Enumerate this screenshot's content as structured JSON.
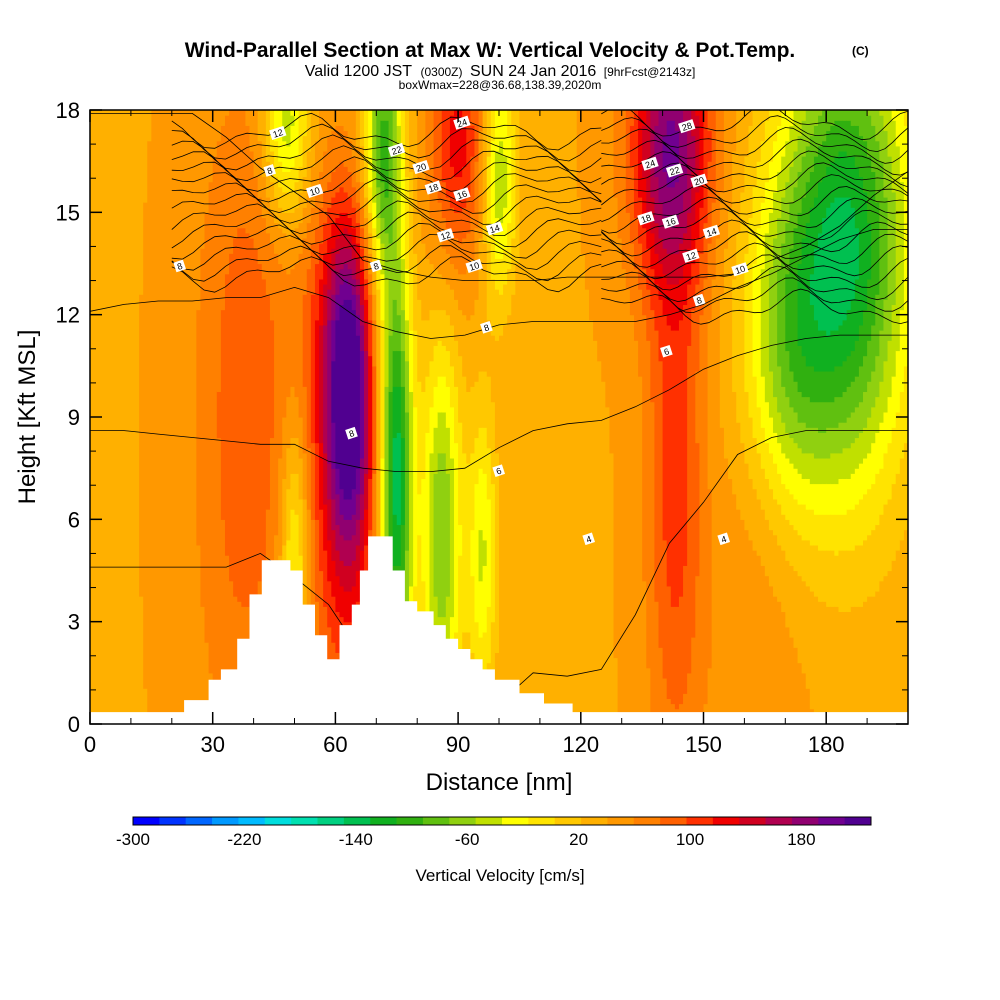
{
  "chart_data": {
    "type": "heatmap",
    "title": "Wind-Parallel Section at Max W: Vertical Velocity & Pot.Temp.",
    "title_mark": "(C)",
    "subtitle": {
      "part1": "Valid 1200 JST",
      "utc": "(0300Z)",
      "part2": "SUN 24 Jan 2016",
      "fcst": "[9hrFcst@2143z]"
    },
    "subtitle2": "boxWmax=228@36.68,138.39,2020m",
    "xlabel": "Distance [nm]",
    "ylabel": "Height [Kft MSL]",
    "xlim": [
      0,
      200
    ],
    "ylim": [
      0,
      18
    ],
    "x_ticks": [
      0,
      30,
      60,
      90,
      120,
      150,
      180
    ],
    "y_ticks": [
      0,
      3,
      6,
      9,
      12,
      15,
      18
    ],
    "colorbar": {
      "label": "Vertical Velocity [cm/s]",
      "range": [
        -300,
        230
      ],
      "tick_labels": [
        -300,
        -220,
        -140,
        -60,
        20,
        100,
        180
      ],
      "colors": [
        "#0000ff",
        "#0033ff",
        "#0066ff",
        "#0099ff",
        "#00bbff",
        "#00dddd",
        "#00e0b0",
        "#00d080",
        "#00c050",
        "#10b020",
        "#30b010",
        "#60c010",
        "#90d010",
        "#c0e000",
        "#ffff00",
        "#ffe400",
        "#ffc800",
        "#ffb000",
        "#ff9800",
        "#ff8000",
        "#ff6000",
        "#ff3000",
        "#f00000",
        "#d00020",
        "#b00050",
        "#900070",
        "#700090",
        "#500090"
      ]
    },
    "terrain_kft": [
      [
        0,
        0.35
      ],
      [
        23,
        0.35
      ],
      [
        23,
        0.7
      ],
      [
        29,
        0.7
      ],
      [
        29,
        1.3
      ],
      [
        32,
        1.3
      ],
      [
        32,
        1.6
      ],
      [
        36,
        1.6
      ],
      [
        36,
        2.5
      ],
      [
        39,
        2.5
      ],
      [
        39,
        3.8
      ],
      [
        42,
        3.8
      ],
      [
        42,
        4.8
      ],
      [
        49,
        4.8
      ],
      [
        49,
        4.5
      ],
      [
        52,
        4.5
      ],
      [
        52,
        3.5
      ],
      [
        55,
        3.5
      ],
      [
        55,
        2.6
      ],
      [
        58,
        2.6
      ],
      [
        58,
        1.9
      ],
      [
        61,
        1.9
      ],
      [
        61,
        2.9
      ],
      [
        64,
        2.9
      ],
      [
        64,
        3.5
      ],
      [
        66,
        3.5
      ],
      [
        66,
        4.5
      ],
      [
        68,
        4.5
      ],
      [
        68,
        5.5
      ],
      [
        74,
        5.5
      ],
      [
        74,
        4.5
      ],
      [
        77,
        4.5
      ],
      [
        77,
        3.6
      ],
      [
        80,
        3.6
      ],
      [
        80,
        3.3
      ],
      [
        84,
        3.3
      ],
      [
        84,
        2.9
      ],
      [
        87,
        2.9
      ],
      [
        87,
        2.5
      ],
      [
        90,
        2.5
      ],
      [
        90,
        2.2
      ],
      [
        93,
        2.2
      ],
      [
        93,
        1.9
      ],
      [
        96,
        1.9
      ],
      [
        96,
        1.6
      ],
      [
        99,
        1.6
      ],
      [
        99,
        1.3
      ],
      [
        105,
        1.3
      ],
      [
        105,
        0.9
      ],
      [
        111,
        0.9
      ],
      [
        111,
        0.6
      ],
      [
        118,
        0.6
      ],
      [
        118,
        0.35
      ],
      [
        200,
        0.35
      ]
    ],
    "wind_cells": [
      {
        "x": 64,
        "y": 10,
        "sx": 4.5,
        "sy": 3.5,
        "w": 230
      },
      {
        "x": 63,
        "y": 6,
        "sx": 7,
        "sy": 5,
        "w": 110
      },
      {
        "x": 58,
        "y": 12,
        "sx": 5,
        "sy": 3,
        "w": 70
      },
      {
        "x": 38,
        "y": 8,
        "sx": 9,
        "sy": 7,
        "w": 90
      },
      {
        "x": 40,
        "y": 14,
        "sx": 8,
        "sy": 4,
        "w": 50
      },
      {
        "x": 70,
        "y": 12,
        "sx": 4,
        "sy": 6,
        "w": -20
      },
      {
        "x": 75,
        "y": 7,
        "sx": 2.8,
        "sy": 4.5,
        "w": -150
      },
      {
        "x": 86,
        "y": 5.5,
        "sx": 3.5,
        "sy": 4,
        "w": -80
      },
      {
        "x": 96,
        "y": 5,
        "sx": 2.5,
        "sy": 3,
        "w": -40
      },
      {
        "x": 50,
        "y": 4.5,
        "sx": 2.5,
        "sy": 3,
        "w": -50
      },
      {
        "x": 142,
        "y": 17,
        "sx": 7,
        "sy": 3,
        "w": 190
      },
      {
        "x": 143,
        "y": 7,
        "sx": 5,
        "sy": 6,
        "w": 110
      },
      {
        "x": 90,
        "y": 17,
        "sx": 5,
        "sy": 2.5,
        "w": 130
      },
      {
        "x": 100,
        "y": 16,
        "sx": 3,
        "sy": 2.5,
        "w": -60
      },
      {
        "x": 72,
        "y": 17,
        "sx": 3,
        "sy": 2.5,
        "w": -70
      },
      {
        "x": 48,
        "y": 17.5,
        "sx": 4,
        "sy": 2,
        "w": -60
      },
      {
        "x": 185,
        "y": 14,
        "sx": 11,
        "sy": 5,
        "w": -140
      },
      {
        "x": 170,
        "y": 11,
        "sx": 8,
        "sy": 3.5,
        "w": -40
      },
      {
        "x": 162,
        "y": 3,
        "sx": 9,
        "sy": 5,
        "w": 60
      },
      {
        "x": 125,
        "y": 4,
        "sx": 12,
        "sy": 5,
        "w": 40
      },
      {
        "x": 15,
        "y": 6,
        "sx": 14,
        "sy": 9,
        "w": 40
      }
    ],
    "theta_contours": [
      {
        "label": "4",
        "y": [
          4.6,
          4.6,
          4.6,
          4.6,
          4.6,
          5.0,
          4.3,
          3.5,
          2.0,
          0.6,
          0.6,
          0.6,
          0.6,
          1.5,
          1.4,
          1.6,
          3.2,
          5.3,
          6.5,
          7.9,
          8.4,
          8.6,
          8.6,
          8.6,
          8.6
        ]
      },
      {
        "label": "6",
        "y": [
          8.6,
          8.6,
          8.5,
          8.4,
          8.3,
          8.2,
          8.2,
          7.7,
          7.5,
          7.4,
          7.4,
          7.5,
          8.1,
          8.6,
          8.8,
          8.9,
          9.3,
          9.8,
          10.4,
          10.8,
          11.1,
          11.3,
          11.4,
          11.4,
          11.4
        ]
      },
      {
        "label": "8",
        "y": [
          12.1,
          12.3,
          12.4,
          12.4,
          12.5,
          12.5,
          12.8,
          12.5,
          11.8,
          11.5,
          11.3,
          11.4,
          11.7,
          11.8,
          11.8,
          11.8,
          11.8,
          12.0,
          12.3,
          12.8,
          13.2,
          13.7,
          14.2,
          14.5,
          14.5
        ]
      },
      {
        "label": "10",
        "y": [
          17.9,
          17.9,
          17.9,
          17.9,
          17.2,
          16.3,
          15.6,
          14.9,
          13.6,
          13.3,
          13.1,
          13.0,
          13.0,
          13.0,
          13.1,
          13.1,
          13.1,
          13.1,
          13.1,
          13.2,
          13.6,
          14.0,
          14.6,
          15.5,
          16.2
        ]
      }
    ],
    "theta_bands": [
      {
        "x_from": 20,
        "x_to": 125,
        "y0": 13.2,
        "spacing": 0.32,
        "count": 14
      },
      {
        "x_from": 125,
        "x_to": 200,
        "y0": 12.2,
        "spacing": 0.34,
        "count": 17
      }
    ],
    "contour_labels": [
      {
        "text": "12",
        "x": 46,
        "y": 17.3
      },
      {
        "text": "8",
        "x": 44,
        "y": 16.2
      },
      {
        "text": "8",
        "x": 22,
        "y": 13.4
      },
      {
        "text": "10",
        "x": 55,
        "y": 15.6
      },
      {
        "text": "8",
        "x": 70,
        "y": 13.4
      },
      {
        "text": "22",
        "x": 75,
        "y": 16.8
      },
      {
        "text": "20",
        "x": 81,
        "y": 16.3
      },
      {
        "text": "24",
        "x": 91,
        "y": 17.6
      },
      {
        "text": "18",
        "x": 84,
        "y": 15.7
      },
      {
        "text": "16",
        "x": 91,
        "y": 15.5
      },
      {
        "text": "12",
        "x": 87,
        "y": 14.3
      },
      {
        "text": "14",
        "x": 99,
        "y": 14.5
      },
      {
        "text": "10",
        "x": 94,
        "y": 13.4
      },
      {
        "text": "8",
        "x": 97,
        "y": 11.6
      },
      {
        "text": "8",
        "x": 64,
        "y": 8.5
      },
      {
        "text": "6",
        "x": 100,
        "y": 7.4
      },
      {
        "text": "4",
        "x": 122,
        "y": 5.4
      },
      {
        "text": "28",
        "x": 146,
        "y": 17.5
      },
      {
        "text": "24",
        "x": 137,
        "y": 16.4
      },
      {
        "text": "22",
        "x": 143,
        "y": 16.2
      },
      {
        "text": "20",
        "x": 149,
        "y": 15.9
      },
      {
        "text": "18",
        "x": 136,
        "y": 14.8
      },
      {
        "text": "16",
        "x": 142,
        "y": 14.7
      },
      {
        "text": "14",
        "x": 152,
        "y": 14.4
      },
      {
        "text": "12",
        "x": 147,
        "y": 13.7
      },
      {
        "text": "10",
        "x": 159,
        "y": 13.3
      },
      {
        "text": "8",
        "x": 149,
        "y": 12.4
      },
      {
        "text": "6",
        "x": 141,
        "y": 10.9
      },
      {
        "text": "4",
        "x": 155,
        "y": 5.4
      }
    ]
  }
}
